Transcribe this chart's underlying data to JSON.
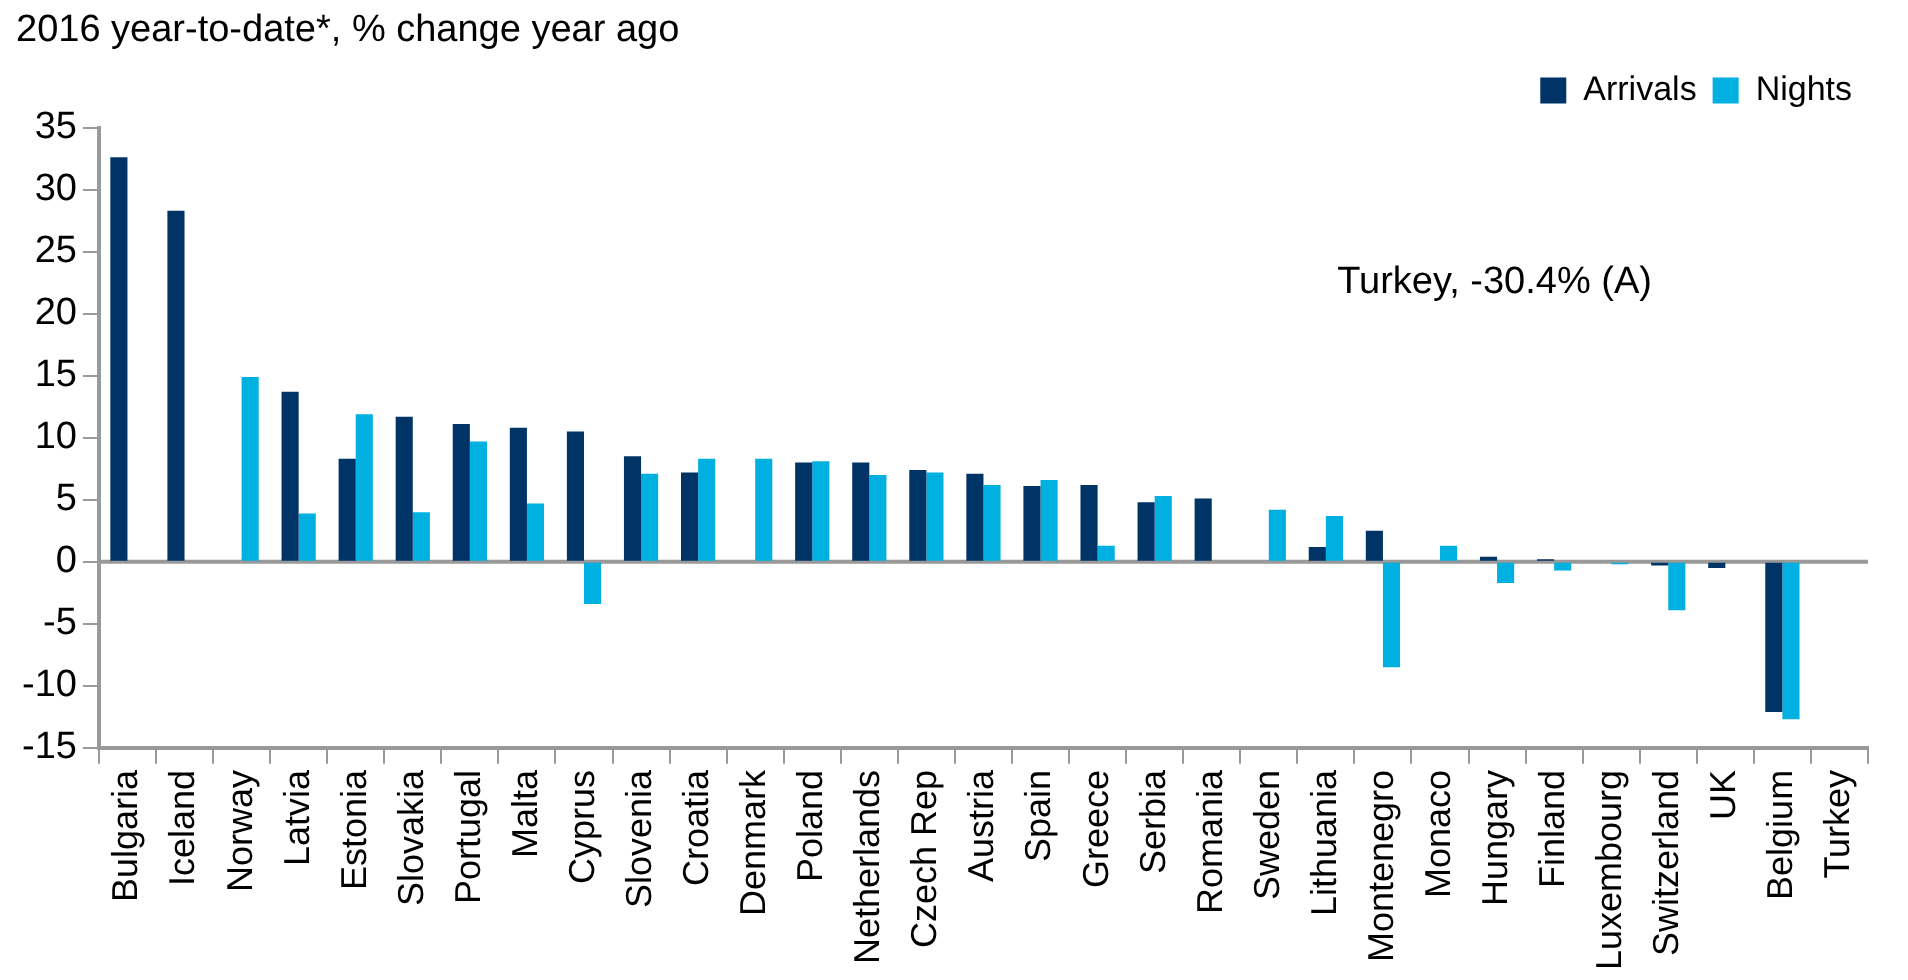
{
  "chart_data": {
    "type": "bar",
    "title": "2016 year-to-date*, % change year ago",
    "categories": [
      "Bulgaria",
      "Iceland",
      "Norway",
      "Latvia",
      "Estonia",
      "Slovakia",
      "Portugal",
      "Malta",
      "Cyprus",
      "Slovenia",
      "Croatia",
      "Denmark",
      "Poland",
      "Netherlands",
      "Czech Rep",
      "Austria",
      "Spain",
      "Greece",
      "Serbia",
      "Romania",
      "Sweden",
      "Lithuania",
      "Montenegro",
      "Monaco",
      "Hungary",
      "Finland",
      "Luxembourg",
      "Switzerland",
      "UK",
      "Belgium",
      "Turkey"
    ],
    "series": [
      {
        "name": "Arrivals",
        "color": "#003366",
        "values": [
          32.6,
          28.3,
          null,
          13.7,
          8.3,
          11.7,
          11.1,
          10.8,
          10.5,
          8.5,
          7.2,
          null,
          8.0,
          8.0,
          7.4,
          7.1,
          6.1,
          6.2,
          4.8,
          5.1,
          null,
          1.2,
          2.5,
          null,
          0.4,
          0.2,
          null,
          -0.3,
          -0.5,
          -12.1,
          null
        ]
      },
      {
        "name": "Nights",
        "color": "#00b0e0",
        "values": [
          null,
          null,
          14.9,
          3.9,
          11.9,
          4.0,
          9.7,
          4.7,
          -3.4,
          7.1,
          8.3,
          8.3,
          8.1,
          7.0,
          7.2,
          6.2,
          6.6,
          1.3,
          5.3,
          null,
          4.2,
          3.7,
          -8.5,
          1.3,
          -1.7,
          -0.7,
          -0.2,
          -3.9,
          null,
          -12.7,
          null
        ]
      }
    ],
    "ylim": [
      -15,
      35
    ],
    "yticks": [
      -15,
      -10,
      -5,
      0,
      5,
      10,
      15,
      20,
      25,
      30,
      35
    ],
    "grid": false,
    "ref_lines": [
      {
        "axis": "y",
        "value": 0,
        "color": "#999999"
      }
    ],
    "legend": "top right",
    "annotations": [
      "Turkey, -30.4% (A)"
    ]
  }
}
